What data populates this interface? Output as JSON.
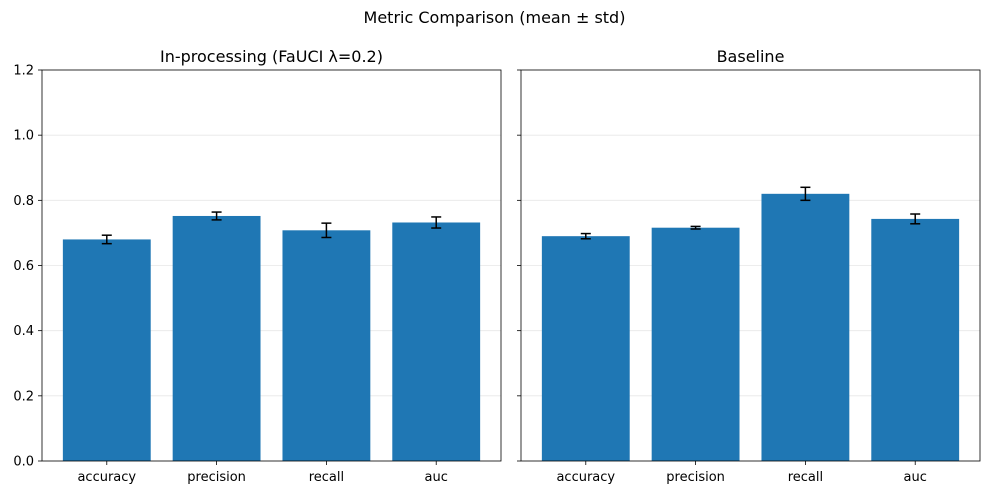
{
  "figure": {
    "title": "Metric Comparison (mean ± std)"
  },
  "colors": {
    "bar": "#1f77b4",
    "error_bar": "#000000"
  },
  "chart_data": [
    {
      "type": "bar",
      "title": "In-processing (FaUCI λ=0.2)",
      "xlabel": "",
      "ylabel": "",
      "categories": [
        "accuracy",
        "precision",
        "recall",
        "auc"
      ],
      "values": [
        0.68,
        0.752,
        0.708,
        0.732
      ],
      "errors": [
        0.013,
        0.012,
        0.022,
        0.017
      ],
      "ylim": [
        0,
        1.2
      ],
      "yticks": [
        "0.0",
        "0.2",
        "0.4",
        "0.6",
        "0.8",
        "1.0",
        "1.2"
      ],
      "grid": "y",
      "legend": "none"
    },
    {
      "type": "bar",
      "title": "Baseline",
      "xlabel": "",
      "ylabel": "",
      "categories": [
        "accuracy",
        "precision",
        "recall",
        "auc"
      ],
      "values": [
        0.69,
        0.716,
        0.82,
        0.743
      ],
      "errors": [
        0.008,
        0.004,
        0.02,
        0.015
      ],
      "ylim": [
        0,
        1.2
      ],
      "yticks": [
        "0.0",
        "0.2",
        "0.4",
        "0.6",
        "0.8",
        "1.0",
        "1.2"
      ],
      "grid": "y",
      "legend": "none"
    }
  ]
}
